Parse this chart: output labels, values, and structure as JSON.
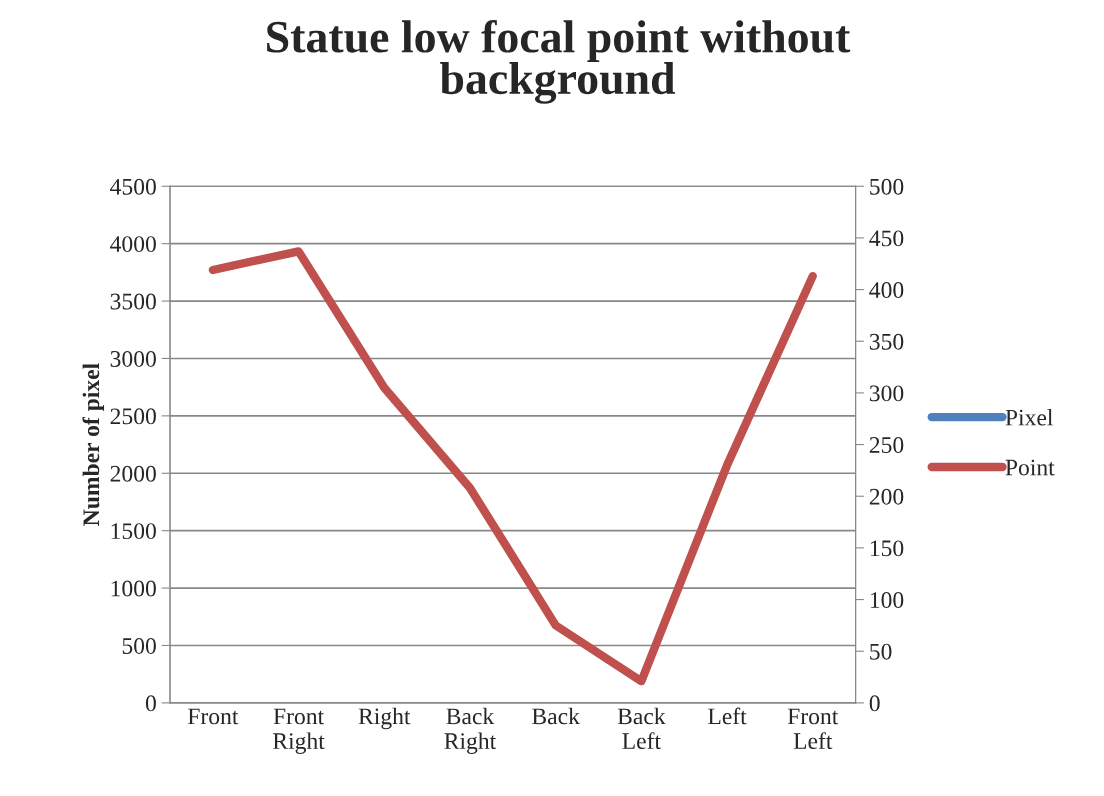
{
  "chart_data": {
    "type": "line",
    "title": "Statue low focal point without\nbackground",
    "ylabel": "Number of pixel",
    "categories": [
      "Front",
      "Front\nRight",
      "Right",
      "Back\nRight",
      "Back",
      "Back\nLeft",
      "Left",
      "Front\nLeft"
    ],
    "series": [
      {
        "name": "Pixel",
        "color": "#4f81bd",
        "values": [
          null,
          null,
          null,
          null,
          null,
          null,
          null,
          null
        ]
      },
      {
        "name": "Point",
        "color": "#c0504d",
        "axis": "y2",
        "values": [
          419,
          437,
          305,
          208,
          75,
          21,
          230,
          413
        ]
      }
    ],
    "ylim": [
      0,
      4500
    ],
    "yticks": [
      0,
      500,
      1000,
      1500,
      2000,
      2500,
      3000,
      3500,
      4000,
      4500
    ],
    "y2lim": [
      0,
      500
    ],
    "y2ticks": [
      0,
      50,
      100,
      150,
      200,
      250,
      300,
      350,
      400,
      450,
      500
    ],
    "grid": "y",
    "legend": "right",
    "line_style": "solid"
  }
}
